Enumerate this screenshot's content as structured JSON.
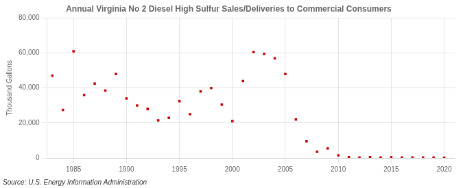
{
  "chart_data": {
    "type": "scatter",
    "title": "Annual Virginia No 2 Diesel High Sulfur Sales/Deliveries to Commercial Consumers",
    "ylabel": "Thousand Gallons",
    "source": "Source: U.S. Energy Information Administration",
    "x": [
      1983,
      1984,
      1985,
      1986,
      1987,
      1988,
      1989,
      1990,
      1991,
      1992,
      1993,
      1994,
      1995,
      1996,
      1997,
      1998,
      1999,
      2000,
      2001,
      2002,
      2003,
      2004,
      2005,
      2006,
      2007,
      2008,
      2009,
      2010,
      2011,
      2012,
      2013,
      2014,
      2015,
      2016,
      2017,
      2018,
      2019,
      2020
    ],
    "values": [
      47000,
      27500,
      61000,
      36000,
      42500,
      38500,
      48000,
      34000,
      30000,
      28000,
      21500,
      23000,
      32500,
      25000,
      38000,
      40000,
      30500,
      21000,
      44000,
      60500,
      59500,
      57000,
      48000,
      22000,
      9500,
      3500,
      5500,
      1500,
      500,
      200,
      500,
      200,
      400,
      200,
      200,
      200,
      200,
      100
    ],
    "color": "#cc0000",
    "marker": "square",
    "xlim": [
      1982.5,
      2021
    ],
    "xticks": [
      1985,
      1990,
      1995,
      2000,
      2005,
      2010,
      2015,
      2020
    ],
    "ylim": [
      0,
      80000
    ],
    "yticks": [
      0,
      {
        "value": 20000,
        "label": "20,000"
      },
      {
        "value": 40000,
        "label": "40,000"
      },
      {
        "value": 60000,
        "label": "60,000"
      },
      {
        "value": 80000,
        "label": "80,000"
      }
    ],
    "grid": true
  }
}
